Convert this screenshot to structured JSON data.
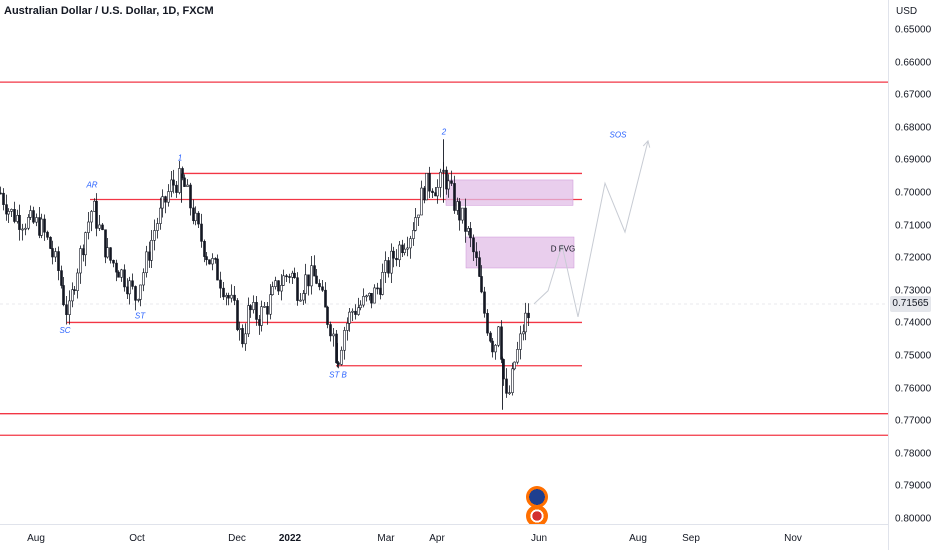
{
  "header": {
    "title": "Australian Dollar / U.S. Dollar, 1D, FXCM"
  },
  "price_axis": {
    "currency": "USD",
    "ticks": [
      "0.80000",
      "0.79000",
      "0.78000",
      "0.77000",
      "0.76000",
      "0.75000",
      "0.74000",
      "0.73000",
      "0.72000",
      "0.71000",
      "0.70000",
      "0.69000",
      "0.68000",
      "0.67000",
      "0.66000",
      "0.65000"
    ],
    "current_price": "0.71565"
  },
  "time_axis": {
    "ticks": [
      {
        "label": "Aug",
        "bold": false
      },
      {
        "label": "Oct",
        "bold": false
      },
      {
        "label": "Dec",
        "bold": false
      },
      {
        "label": "2022",
        "bold": true
      },
      {
        "label": "Mar",
        "bold": false
      },
      {
        "label": "Apr",
        "bold": false
      },
      {
        "label": "Jun",
        "bold": false
      },
      {
        "label": "Aug",
        "bold": false
      },
      {
        "label": "Sep",
        "bold": false
      },
      {
        "label": "Nov",
        "bold": false
      }
    ]
  },
  "annotations": [
    "SC",
    "AR",
    "ST",
    "1",
    "ST B",
    "2",
    "SOS",
    "D FVG"
  ],
  "colors": {
    "up": "#ffffff",
    "down": "#131722",
    "level": "#f23645",
    "zone": "#e1bee7",
    "annotation": "#2962ff"
  },
  "chart_data": {
    "type": "candlestick",
    "title": "Australian Dollar / U.S. Dollar, 1D, FXCM",
    "ylabel": "USD",
    "ylim": [
      0.645,
      0.805
    ],
    "y_ticks": [
      0.65,
      0.66,
      0.67,
      0.68,
      0.69,
      0.7,
      0.71,
      0.72,
      0.73,
      0.74,
      0.75,
      0.76,
      0.77,
      0.78,
      0.79,
      0.8
    ],
    "x_ticks": [
      "Aug",
      "Oct",
      "Dec",
      "2022",
      "Mar",
      "Apr",
      "Jun",
      "Aug",
      "Sep",
      "Nov"
    ],
    "last_price": 0.71565,
    "close_path": [
      [
        0,
        0.75
      ],
      [
        10,
        0.744
      ],
      [
        20,
        0.742
      ],
      [
        30,
        0.741
      ],
      [
        40,
        0.74
      ],
      [
        50,
        0.733
      ],
      [
        58,
        0.726
      ],
      [
        63,
        0.718
      ],
      [
        68,
        0.712
      ],
      [
        75,
        0.725
      ],
      [
        85,
        0.738
      ],
      [
        92,
        0.746
      ],
      [
        100,
        0.738
      ],
      [
        108,
        0.73
      ],
      [
        118,
        0.727
      ],
      [
        128,
        0.722
      ],
      [
        135,
        0.718
      ],
      [
        145,
        0.728
      ],
      [
        155,
        0.74
      ],
      [
        162,
        0.745
      ],
      [
        170,
        0.752
      ],
      [
        178,
        0.754
      ],
      [
        183,
        0.753
      ],
      [
        190,
        0.746
      ],
      [
        198,
        0.738
      ],
      [
        208,
        0.73
      ],
      [
        218,
        0.725
      ],
      [
        228,
        0.718
      ],
      [
        236,
        0.712
      ],
      [
        241,
        0.704
      ],
      [
        248,
        0.714
      ],
      [
        258,
        0.712
      ],
      [
        268,
        0.716
      ],
      [
        278,
        0.722
      ],
      [
        290,
        0.726
      ],
      [
        298,
        0.72
      ],
      [
        306,
        0.724
      ],
      [
        316,
        0.724
      ],
      [
        324,
        0.714
      ],
      [
        332,
        0.708
      ],
      [
        337,
        0.698
      ],
      [
        343,
        0.708
      ],
      [
        352,
        0.714
      ],
      [
        362,
        0.716
      ],
      [
        372,
        0.718
      ],
      [
        382,
        0.724
      ],
      [
        392,
        0.73
      ],
      [
        402,
        0.735
      ],
      [
        410,
        0.738
      ],
      [
        418,
        0.746
      ],
      [
        424,
        0.752
      ],
      [
        432,
        0.753
      ],
      [
        438,
        0.751
      ],
      [
        443,
        0.756
      ],
      [
        448,
        0.752
      ],
      [
        455,
        0.746
      ],
      [
        462,
        0.742
      ],
      [
        470,
        0.735
      ],
      [
        476,
        0.728
      ],
      [
        482,
        0.716
      ],
      [
        488,
        0.708
      ],
      [
        494,
        0.702
      ],
      [
        498,
        0.712
      ],
      [
        502,
        0.696
      ],
      [
        506,
        0.686
      ],
      [
        510,
        0.69
      ],
      [
        514,
        0.698
      ],
      [
        518,
        0.702
      ],
      [
        522,
        0.708
      ],
      [
        526,
        0.712
      ],
      [
        530,
        0.713
      ]
    ],
    "levels": [
      {
        "price": 0.784,
        "x_start": 0,
        "x_end": 888
      },
      {
        "price": 0.756,
        "x_start": 182,
        "x_end": 582
      },
      {
        "price": 0.748,
        "x_start": 90,
        "x_end": 582
      },
      {
        "price": 0.7103,
        "x_start": 67,
        "x_end": 582
      },
      {
        "price": 0.697,
        "x_start": 336,
        "x_end": 582
      },
      {
        "price": 0.6823,
        "x_start": 0,
        "x_end": 888
      },
      {
        "price": 0.6757,
        "x_start": 0,
        "x_end": 888
      }
    ],
    "zones": [
      {
        "x_start": 446,
        "x_end": 573,
        "y_top": 0.754,
        "y_bottom": 0.7462
      },
      {
        "x_start": 466,
        "x_end": 574,
        "y_top": 0.7365,
        "y_bottom": 0.727,
        "label": "D FVG"
      }
    ],
    "projection_path": [
      [
        534,
        0.716
      ],
      [
        548,
        0.72
      ],
      [
        562,
        0.734
      ],
      [
        578,
        0.712
      ],
      [
        605,
        0.753
      ],
      [
        625,
        0.738
      ],
      [
        648,
        0.766
      ]
    ],
    "labels": [
      {
        "text": "SC",
        "x": 65,
        "price": 0.707
      },
      {
        "text": "AR",
        "x": 92,
        "price": 0.7517
      },
      {
        "text": "ST",
        "x": 140,
        "price": 0.7115
      },
      {
        "text": "1",
        "x": 180,
        "price": 0.76
      },
      {
        "text": "ST B",
        "x": 338,
        "price": 0.6934
      },
      {
        "text": "2",
        "x": 444,
        "price": 0.768
      },
      {
        "text": "SOS",
        "x": 618,
        "price": 0.767
      },
      {
        "text": "D FVG",
        "x": 563,
        "price": 0.732
      }
    ]
  }
}
